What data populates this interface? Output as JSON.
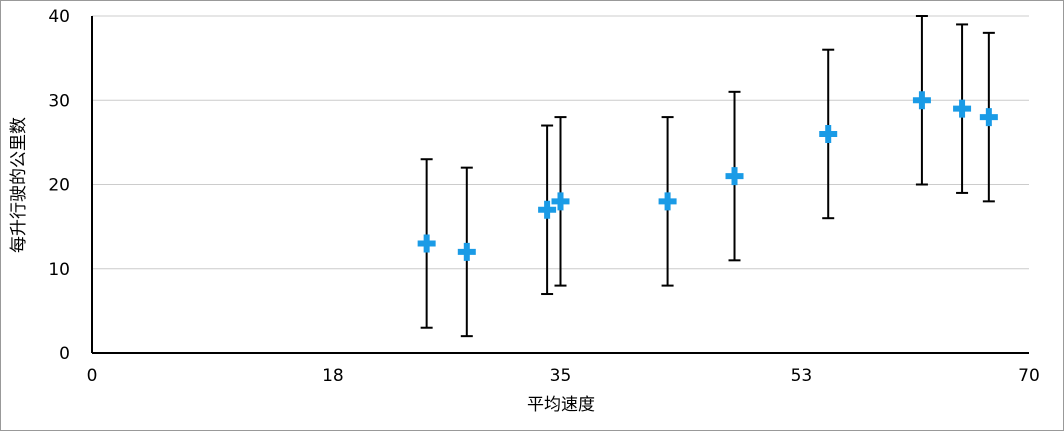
{
  "chart_data": {
    "type": "scatter",
    "x_label": "平均速度",
    "y_label": "每升行驶的公里数",
    "series": [
      {
        "color": "#1a9be6",
        "x": [
          25,
          28,
          34,
          35,
          43,
          48,
          55,
          62,
          65,
          67
        ],
        "values": [
          13,
          12,
          17,
          18,
          18,
          21,
          26,
          30,
          29,
          28
        ],
        "errors": [
          10,
          10,
          10,
          10,
          10,
          10,
          10,
          10,
          10,
          10
        ]
      }
    ],
    "xlim": [
      0,
      70
    ],
    "xticks": [
      0,
      18,
      35,
      53,
      70
    ],
    "ylim": [
      0,
      40
    ],
    "yticks": [
      0,
      10,
      20,
      30,
      40
    ],
    "grid": true
  }
}
